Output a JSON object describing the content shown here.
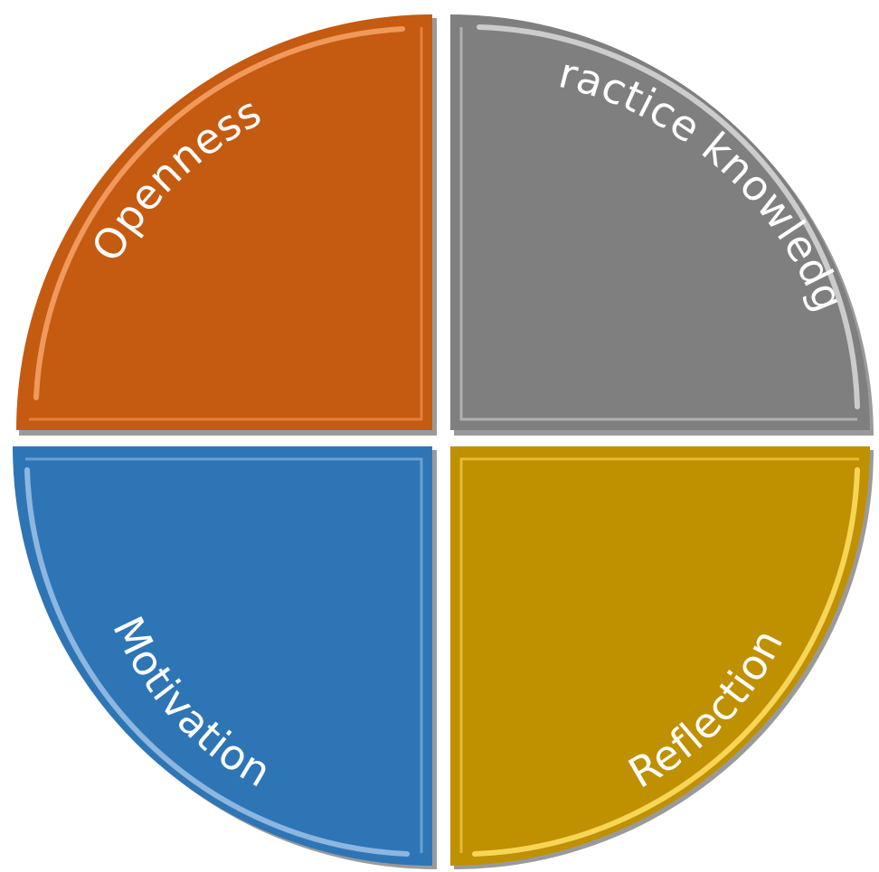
{
  "quadrants": [
    {
      "id": "openness",
      "label": "Openness",
      "color": "#C55A11",
      "highlight": "#F6A46A"
    },
    {
      "id": "practice-knowledge",
      "label": "Practice knowledge",
      "color": "#7F7F7F",
      "highlight": "#D9D9D9"
    },
    {
      "id": "motivation",
      "label": "Motivation",
      "color": "#2E75B6",
      "highlight": "#9DC3E6"
    },
    {
      "id": "reflection",
      "label": "Reflection",
      "color": "#BF9000",
      "highlight": "#FFE266"
    }
  ]
}
